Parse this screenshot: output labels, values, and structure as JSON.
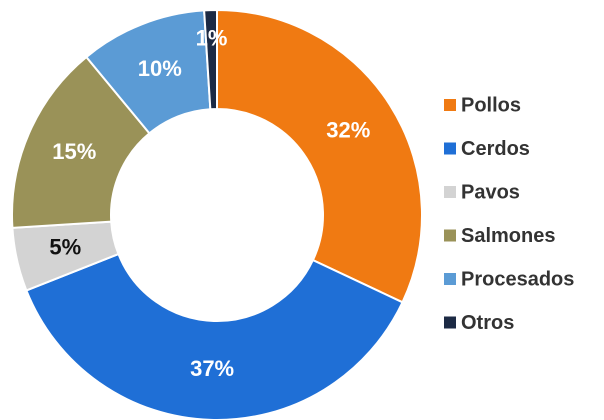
{
  "chart_data": {
    "type": "donut",
    "categories": [
      "Pollos",
      "Cerdos",
      "Pavos",
      "Salmones",
      "Procesados",
      "Otros"
    ],
    "values": [
      32,
      37,
      5,
      15,
      10,
      1
    ],
    "value_labels": [
      "32%",
      "37%",
      "5%",
      "15%",
      "10%",
      "1%"
    ],
    "colors": [
      "#f07a12",
      "#1f6fd6",
      "#d3d3d3",
      "#9a9258",
      "#5b9bd5",
      "#1c2a44"
    ],
    "legend": "right"
  }
}
